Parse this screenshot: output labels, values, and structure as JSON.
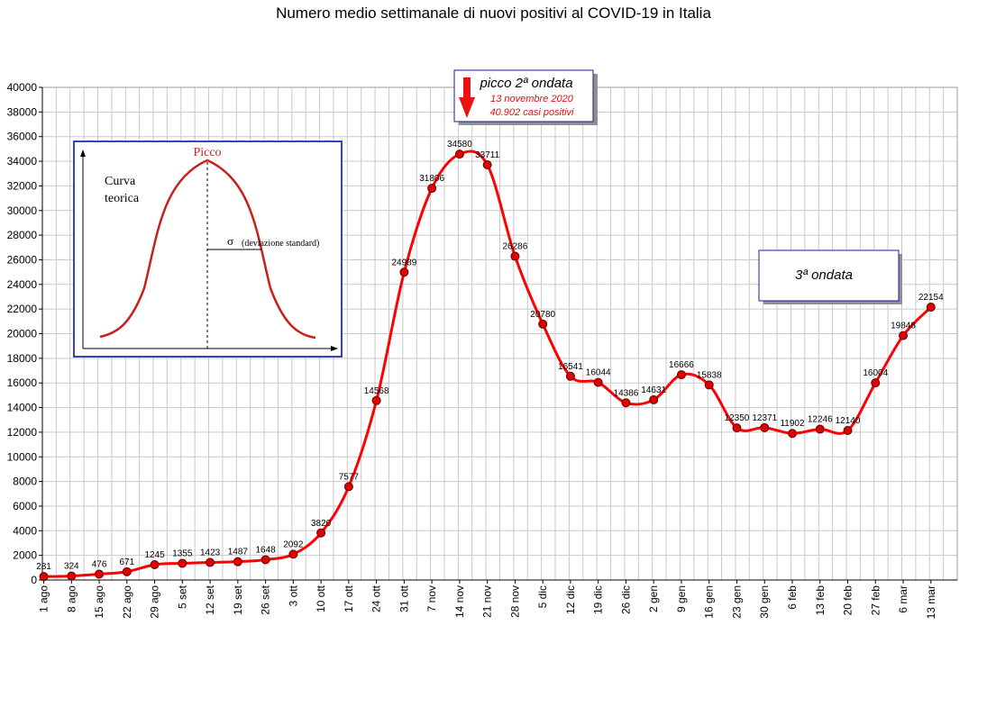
{
  "chart_data": {
    "type": "line",
    "title": "Numero medio settimanale di nuovi positivi al COVID-19 in Italia",
    "ylim": [
      0,
      40000
    ],
    "y_ticks": [
      0,
      2000,
      4000,
      6000,
      8000,
      10000,
      12000,
      14000,
      16000,
      18000,
      20000,
      22000,
      24000,
      26000,
      28000,
      30000,
      32000,
      34000,
      36000,
      38000,
      40000
    ],
    "categories": [
      "1 ago",
      "8 ago",
      "15 ago",
      "22 ago",
      "29 ago",
      "5 set",
      "12 set",
      "19 set",
      "26 set",
      "3 ott",
      "10 ott",
      "17 ott",
      "24 ott",
      "31 ott",
      "7 nov",
      "14 nov",
      "21 nov",
      "28 nov",
      "5 dic",
      "12 dic",
      "19 dic",
      "26 dic",
      "2 gen",
      "9 gen",
      "16 gen",
      "23 gen",
      "30 gen",
      "6 feb",
      "13 feb",
      "20 feb",
      "27 feb",
      "6 mar",
      "13 mar"
    ],
    "series": [
      {
        "values": [
          281,
          324,
          476,
          671,
          1245,
          1355,
          1423,
          1487,
          1648,
          2092,
          3820,
          7577,
          14568,
          24989,
          31806,
          34580,
          33711,
          26286,
          20780,
          16541,
          16044,
          14386,
          14631,
          16666,
          15838,
          12350,
          12371,
          11902,
          12246,
          12140,
          16004,
          19848,
          22154
        ],
        "color": "#ff0000"
      }
    ],
    "grid": true,
    "annotations": {
      "peak": {
        "title": "picco 2ª ondata",
        "line1": "13 novembre 2020",
        "line2": "40.902 casi positivi"
      },
      "third_wave": "3ª ondata",
      "inset": {
        "label_peak": "Picco",
        "label_curve_1": "Curva",
        "label_curve_2": "teorica",
        "label_sigma": "σ",
        "label_sigma_desc": "(deviazione standard)"
      }
    }
  }
}
